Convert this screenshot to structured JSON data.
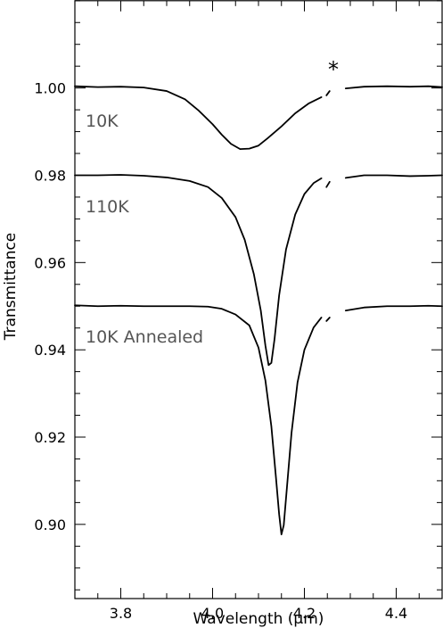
{
  "chart_data": {
    "type": "line",
    "xlabel": "Wavelength (μm)",
    "ylabel": "Transmittance",
    "xlim": [
      3.7,
      4.5
    ],
    "ylim": [
      0.883,
      1.02
    ],
    "xticks": [
      "3.8",
      "4.0",
      "4.2",
      "4.4"
    ],
    "yticks": [
      "0.90",
      "0.92",
      "0.94",
      "0.96",
      "0.98",
      "1.00"
    ],
    "annotation": "*",
    "series": [
      {
        "name": "10K",
        "segments": [
          [
            [
              3.7,
              1.0004
            ],
            [
              3.75,
              1.0002
            ],
            [
              3.8,
              1.0003
            ],
            [
              3.85,
              1.0001
            ],
            [
              3.9,
              0.9993
            ],
            [
              3.94,
              0.9974
            ],
            [
              3.97,
              0.9948
            ],
            [
              4.0,
              0.9917
            ],
            [
              4.02,
              0.9893
            ],
            [
              4.04,
              0.9872
            ],
            [
              4.06,
              0.986
            ],
            [
              4.08,
              0.9861
            ],
            [
              4.1,
              0.9868
            ],
            [
              4.12,
              0.9885
            ],
            [
              4.15,
              0.9912
            ],
            [
              4.18,
              0.9942
            ],
            [
              4.21,
              0.9965
            ],
            [
              4.237,
              0.9979
            ]
          ],
          [
            [
              4.248,
              0.9983
            ],
            [
              4.255,
              0.9993
            ]
          ],
          [
            [
              4.29,
              0.9999
            ],
            [
              4.33,
              1.0003
            ],
            [
              4.38,
              1.0004
            ],
            [
              4.43,
              1.0003
            ],
            [
              4.47,
              1.0004
            ],
            [
              4.5,
              1.0002
            ]
          ]
        ]
      },
      {
        "name": "110K",
        "segments": [
          [
            [
              3.7,
              0.98
            ],
            [
              3.75,
              0.98
            ],
            [
              3.8,
              0.9801
            ],
            [
              3.85,
              0.9799
            ],
            [
              3.9,
              0.9795
            ],
            [
              3.95,
              0.9787
            ],
            [
              3.99,
              0.9773
            ],
            [
              4.02,
              0.9748
            ],
            [
              4.05,
              0.9704
            ],
            [
              4.07,
              0.9652
            ],
            [
              4.09,
              0.9573
            ],
            [
              4.105,
              0.949
            ],
            [
              4.115,
              0.941
            ],
            [
              4.122,
              0.9365
            ],
            [
              4.128,
              0.937
            ],
            [
              4.135,
              0.9425
            ],
            [
              4.145,
              0.9525
            ],
            [
              4.16,
              0.963
            ],
            [
              4.18,
              0.971
            ],
            [
              4.2,
              0.9757
            ],
            [
              4.22,
              0.9782
            ],
            [
              4.237,
              0.9793
            ]
          ],
          [
            [
              4.248,
              0.9773
            ],
            [
              4.255,
              0.9785
            ]
          ],
          [
            [
              4.29,
              0.9794
            ],
            [
              4.33,
              0.98
            ],
            [
              4.38,
              0.98
            ],
            [
              4.43,
              0.9798
            ],
            [
              4.47,
              0.9799
            ],
            [
              4.5,
              0.98
            ]
          ]
        ]
      },
      {
        "name": "10K Annealed",
        "segments": [
          [
            [
              3.7,
              0.9502
            ],
            [
              3.75,
              0.95
            ],
            [
              3.8,
              0.9501
            ],
            [
              3.85,
              0.95
            ],
            [
              3.9,
              0.95
            ],
            [
              3.95,
              0.95
            ],
            [
              3.99,
              0.9499
            ],
            [
              4.02,
              0.9494
            ],
            [
              4.05,
              0.9481
            ],
            [
              4.08,
              0.9456
            ],
            [
              4.1,
              0.9405
            ],
            [
              4.115,
              0.933
            ],
            [
              4.128,
              0.9225
            ],
            [
              4.138,
              0.9108
            ],
            [
              4.145,
              0.9023
            ],
            [
              4.15,
              0.8977
            ],
            [
              4.155,
              0.8998
            ],
            [
              4.162,
              0.9085
            ],
            [
              4.172,
              0.921
            ],
            [
              4.185,
              0.9325
            ],
            [
              4.2,
              0.94
            ],
            [
              4.22,
              0.9451
            ],
            [
              4.237,
              0.9474
            ]
          ],
          [
            [
              4.248,
              0.9466
            ],
            [
              4.255,
              0.9474
            ]
          ],
          [
            [
              4.29,
              0.949
            ],
            [
              4.33,
              0.9497
            ],
            [
              4.38,
              0.95
            ],
            [
              4.43,
              0.95
            ],
            [
              4.47,
              0.9501
            ],
            [
              4.5,
              0.95
            ]
          ]
        ]
      }
    ]
  }
}
